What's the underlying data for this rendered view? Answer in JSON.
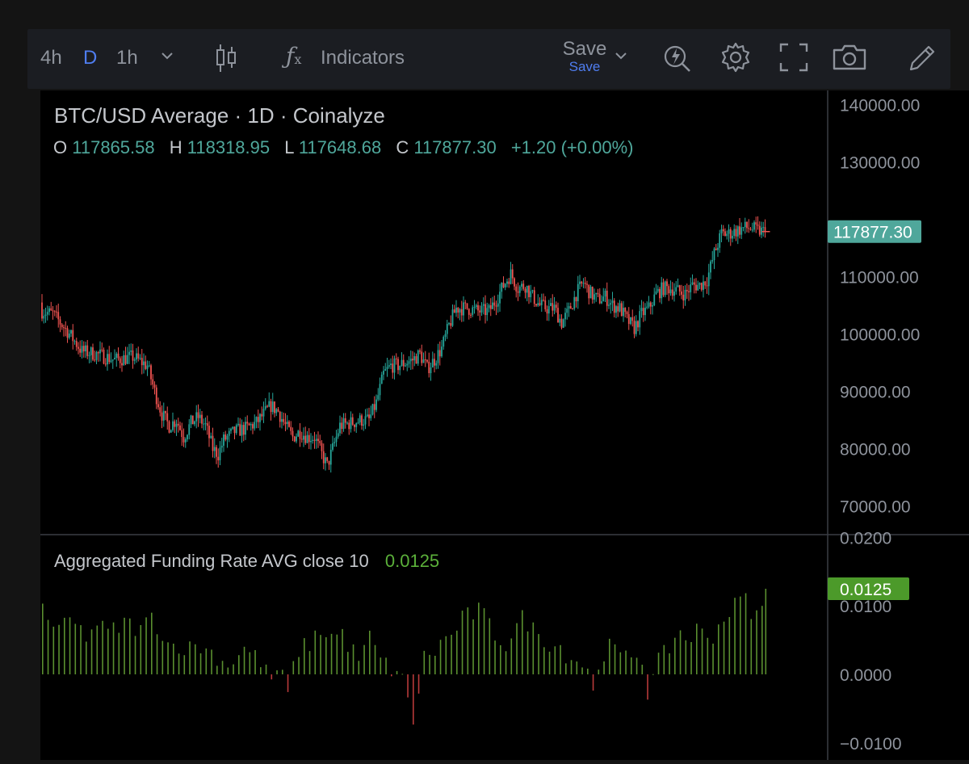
{
  "toolbar": {
    "intervals": [
      "4h",
      "D",
      "1h"
    ],
    "active_interval": "D",
    "indicators_label": "Indicators",
    "save_label": "Save",
    "save_sublabel": "Save",
    "icons": [
      "chevron-down-icon",
      "candles-icon",
      "fx-icon",
      "chevron-down-icon",
      "flash-search-icon",
      "gear-icon",
      "fullscreen-icon",
      "camera-icon",
      "pencil-icon"
    ]
  },
  "legend": {
    "title": "BTC/USD Average · 1D · Coinalyze",
    "o_label": "O",
    "o_value": "117865.58",
    "h_label": "H",
    "h_value": "118318.95",
    "l_label": "L",
    "l_value": "117648.68",
    "c_label": "C",
    "c_value": "117877.30",
    "change": "+1.20 (+0.00%)"
  },
  "funding_legend": {
    "title": "Aggregated Funding Rate AVG close 10",
    "value": "0.0125"
  },
  "colors": {
    "up": "#26a69a",
    "down": "#ef5350",
    "funding_pos": "#5a8f2f",
    "funding_neg": "#b83a3a",
    "price_badge": "#4fa79b",
    "funding_badge": "#4c9a2a",
    "axis_text": "#8e939c",
    "legend_value": "#4fa79b"
  },
  "chart_data": [
    {
      "type": "candlestick",
      "title": "BTC/USD Average · 1D · Coinalyze",
      "ylim": [
        65000,
        142500
      ],
      "yticks": [
        "140000.00",
        "130000.00",
        "110000.00",
        "100000.00",
        "90000.00",
        "80000.00",
        "70000.00"
      ],
      "last_price_label": "117877.30",
      "last_price": 117877.3,
      "anchors": [
        [
          0,
          104000
        ],
        [
          6,
          103500
        ],
        [
          14,
          100500
        ],
        [
          22,
          97000
        ],
        [
          30,
          96500
        ],
        [
          40,
          95500
        ],
        [
          50,
          96000
        ],
        [
          58,
          94500
        ],
        [
          62,
          90000
        ],
        [
          66,
          86000
        ],
        [
          70,
          84000
        ],
        [
          74,
          85000
        ],
        [
          78,
          82000
        ],
        [
          82,
          84500
        ],
        [
          86,
          85500
        ],
        [
          90,
          84000
        ],
        [
          94,
          80000
        ],
        [
          97,
          79000
        ],
        [
          100,
          81500
        ],
        [
          106,
          83000
        ],
        [
          112,
          83500
        ],
        [
          118,
          84500
        ],
        [
          122,
          86000
        ],
        [
          126,
          87500
        ],
        [
          130,
          86500
        ],
        [
          134,
          84000
        ],
        [
          138,
          82000
        ],
        [
          142,
          83000
        ],
        [
          146,
          82000
        ],
        [
          150,
          82000
        ],
        [
          154,
          79000
        ],
        [
          157,
          77000
        ],
        [
          160,
          80000
        ],
        [
          164,
          84000
        ],
        [
          170,
          84500
        ],
        [
          176,
          85000
        ],
        [
          180,
          85000
        ],
        [
          184,
          88000
        ],
        [
          188,
          93000
        ],
        [
          192,
          94500
        ],
        [
          196,
          94500
        ],
        [
          200,
          95000
        ],
        [
          204,
          95500
        ],
        [
          208,
          96500
        ],
        [
          212,
          94000
        ],
        [
          216,
          95500
        ],
        [
          220,
          97500
        ],
        [
          224,
          101500
        ],
        [
          228,
          104500
        ],
        [
          234,
          104500
        ],
        [
          240,
          104000
        ],
        [
          246,
          104000
        ],
        [
          250,
          106000
        ],
        [
          254,
          108500
        ],
        [
          258,
          110500
        ],
        [
          262,
          108000
        ],
        [
          266,
          108500
        ],
        [
          270,
          106500
        ],
        [
          274,
          105000
        ],
        [
          278,
          104500
        ],
        [
          282,
          104500
        ],
        [
          286,
          102000
        ],
        [
          290,
          104000
        ],
        [
          294,
          107000
        ],
        [
          298,
          109000
        ],
        [
          302,
          107000
        ],
        [
          306,
          106000
        ],
        [
          310,
          106500
        ],
        [
          314,
          105000
        ],
        [
          318,
          104500
        ],
        [
          322,
          102500
        ],
        [
          326,
          101000
        ],
        [
          330,
          103500
        ],
        [
          334,
          104500
        ],
        [
          338,
          107000
        ],
        [
          342,
          108000
        ],
        [
          346,
          108000
        ],
        [
          350,
          107500
        ],
        [
          354,
          107000
        ],
        [
          358,
          108500
        ],
        [
          362,
          108500
        ],
        [
          366,
          109500
        ],
        [
          370,
          114000
        ],
        [
          374,
          117500
        ],
        [
          378,
          117500
        ],
        [
          382,
          118000
        ],
        [
          386,
          118500
        ],
        [
          390,
          118500
        ],
        [
          394,
          118000
        ],
        [
          398,
          117877.3
        ]
      ]
    },
    {
      "type": "bar",
      "title": "Aggregated Funding Rate AVG close 10",
      "ylim": [
        -0.0125,
        0.0204
      ],
      "yticks": [
        "0.0200",
        "0.0100",
        "0.0000",
        "−0.0100"
      ],
      "last_value_label": "0.0125",
      "last_value": 0.0125,
      "anchors": [
        [
          0,
          0.01
        ],
        [
          5,
          0.0075
        ],
        [
          10,
          0.006
        ],
        [
          15,
          0.008
        ],
        [
          20,
          0.0065
        ],
        [
          25,
          0.0055
        ],
        [
          30,
          0.0075
        ],
        [
          35,
          0.006
        ],
        [
          40,
          0.0065
        ],
        [
          45,
          0.0075
        ],
        [
          50,
          0.007
        ],
        [
          55,
          0.0065
        ],
        [
          60,
          0.0085
        ],
        [
          65,
          0.0065
        ],
        [
          70,
          0.004
        ],
        [
          75,
          0.0045
        ],
        [
          80,
          0.0035
        ],
        [
          85,
          0.0045
        ],
        [
          90,
          0.0035
        ],
        [
          95,
          0.003
        ],
        [
          100,
          0.0015
        ],
        [
          105,
          0.002
        ],
        [
          110,
          0.004
        ],
        [
          115,
          0.003
        ],
        [
          120,
          0.002
        ],
        [
          125,
          -0.001
        ],
        [
          130,
          0.001
        ],
        [
          135,
          -0.003
        ],
        [
          140,
          0.0035
        ],
        [
          145,
          0.004
        ],
        [
          150,
          0.0055
        ],
        [
          155,
          0.0065
        ],
        [
          160,
          0.0055
        ],
        [
          165,
          0.006
        ],
        [
          170,
          0.0035
        ],
        [
          175,
          0.002
        ],
        [
          180,
          0.0055
        ],
        [
          185,
          0.0025
        ],
        [
          190,
          0.001
        ],
        [
          195,
          0.0005
        ],
        [
          200,
          -0.002
        ],
        [
          203,
          -0.008
        ],
        [
          206,
          -0.004
        ],
        [
          210,
          0.0025
        ],
        [
          215,
          0.003
        ],
        [
          220,
          0.005
        ],
        [
          225,
          0.0055
        ],
        [
          230,
          0.008
        ],
        [
          235,
          0.0085
        ],
        [
          240,
          0.0095
        ],
        [
          245,
          0.0075
        ],
        [
          250,
          0.0055
        ],
        [
          255,
          0.0045
        ],
        [
          260,
          0.0065
        ],
        [
          265,
          0.0085
        ],
        [
          270,
          0.0065
        ],
        [
          275,
          0.0055
        ],
        [
          280,
          0.0045
        ],
        [
          285,
          0.004
        ],
        [
          290,
          0.0025
        ],
        [
          295,
          0.002
        ],
        [
          300,
          0.001
        ],
        [
          303,
          -0.003
        ],
        [
          306,
          0.0015
        ],
        [
          310,
          0.004
        ],
        [
          315,
          0.0035
        ],
        [
          320,
          0.002
        ],
        [
          325,
          0.003
        ],
        [
          328,
          0.0035
        ],
        [
          331,
          0.001
        ],
        [
          334,
          -0.004
        ],
        [
          337,
          0.001
        ],
        [
          340,
          0.002
        ],
        [
          345,
          0.004
        ],
        [
          350,
          0.0065
        ],
        [
          355,
          0.005
        ],
        [
          360,
          0.0065
        ],
        [
          365,
          0.0055
        ],
        [
          370,
          0.006
        ],
        [
          375,
          0.0085
        ],
        [
          380,
          0.0095
        ],
        [
          385,
          0.0115
        ],
        [
          390,
          0.0095
        ],
        [
          395,
          0.008
        ],
        [
          398,
          0.0125
        ]
      ]
    }
  ]
}
